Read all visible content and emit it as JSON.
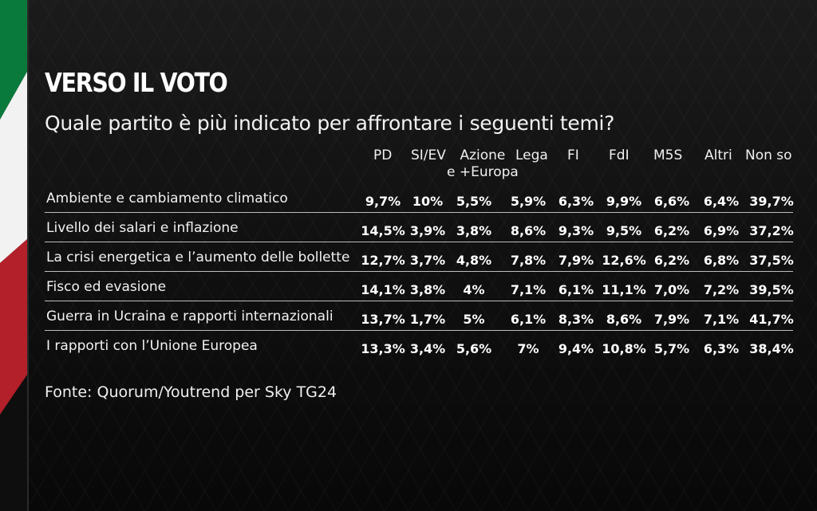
{
  "header": {
    "title": "VERSO IL VOTO",
    "subtitle": "Quale partito è più indicato per affrontare i seguenti temi?"
  },
  "table": {
    "columns": [
      {
        "key": "pd",
        "label": "PD",
        "label2": ""
      },
      {
        "key": "si_ev",
        "label": "SI/EV",
        "label2": ""
      },
      {
        "key": "azione",
        "label": "Azione",
        "label2": "e +Europa"
      },
      {
        "key": "lega",
        "label": "Lega",
        "label2": ""
      },
      {
        "key": "fi",
        "label": "FI",
        "label2": ""
      },
      {
        "key": "fdi",
        "label": "FdI",
        "label2": ""
      },
      {
        "key": "m5s",
        "label": "M5S",
        "label2": ""
      },
      {
        "key": "altri",
        "label": "Altri",
        "label2": ""
      },
      {
        "key": "non_so",
        "label": "Non so",
        "label2": ""
      }
    ],
    "rows": [
      {
        "label": "Ambiente e cambiamento climatico",
        "values": [
          "9,7%",
          "10%",
          "5,5%",
          "5,9%",
          "6,3%",
          "9,9%",
          "6,6%",
          "6,4%",
          "39,7%"
        ]
      },
      {
        "label": "Livello dei salari e inflazione",
        "values": [
          "14,5%",
          "3,9%",
          "3,8%",
          "8,6%",
          "9,3%",
          "9,5%",
          "6,2%",
          "6,9%",
          "37,2%"
        ]
      },
      {
        "label": "La crisi energetica e l’aumento delle bollette",
        "values": [
          "12,7%",
          "3,7%",
          "4,8%",
          "7,8%",
          "7,9%",
          "12,6%",
          "6,2%",
          "6,8%",
          "37,5%"
        ]
      },
      {
        "label": "Fisco ed evasione",
        "values": [
          "14,1%",
          "3,8%",
          "4%",
          "7,1%",
          "6,1%",
          "11,1%",
          "7,0%",
          "7,2%",
          "39,5%"
        ]
      },
      {
        "label": "Guerra in Ucraina e rapporti internazionali",
        "values": [
          "13,7%",
          "1,7%",
          "5%",
          "6,1%",
          "8,3%",
          "8,6%",
          "7,9%",
          "7,1%",
          "41,7%"
        ]
      },
      {
        "label": "I rapporti con l’Unione Europea",
        "values": [
          "13,3%",
          "3,4%",
          "5,6%",
          "7%",
          "9,4%",
          "10,8%",
          "5,7%",
          "6,3%",
          "38,4%"
        ]
      }
    ]
  },
  "footer": {
    "source": "Fonte: Quorum/Youtrend per Sky TG24"
  },
  "colors": {
    "flag_green": "#0a7a3c",
    "flag_white": "#f2f2f2",
    "flag_red": "#b3202a",
    "background": "#111111",
    "text": "#ffffff"
  }
}
